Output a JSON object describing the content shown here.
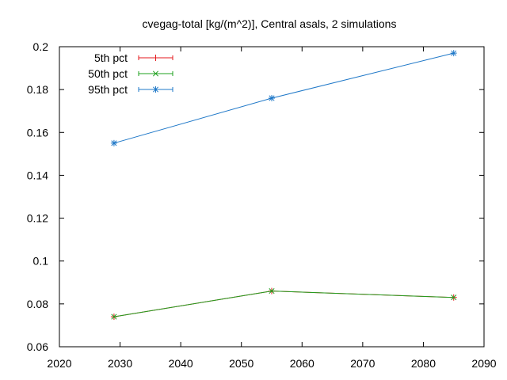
{
  "chart_data": {
    "type": "line",
    "title": "cvegag-total [kg/(m^2)], Central asals, 2 simulations",
    "xlabel": "",
    "ylabel": "",
    "xlim": [
      2020,
      2090
    ],
    "ylim": [
      0.06,
      0.2
    ],
    "xticks": [
      2020,
      2030,
      2040,
      2050,
      2060,
      2070,
      2080,
      2090
    ],
    "yticks": [
      0.06,
      0.08,
      0.1,
      0.12,
      0.14,
      0.16,
      0.18,
      0.2
    ],
    "ytick_labels": [
      "0.06",
      "0.08",
      "0.1",
      "0.12",
      "0.14",
      "0.16",
      "0.18",
      "0.2"
    ],
    "x": [
      2029,
      2055,
      2085
    ],
    "grid": false,
    "legend_position": "top-left",
    "series": [
      {
        "name": "5th pct",
        "color": "#e41a1c",
        "marker": "plus",
        "values": [
          0.074,
          0.086,
          0.083
        ]
      },
      {
        "name": "50th pct",
        "color": "#1fa01f",
        "marker": "cross",
        "values": [
          0.074,
          0.086,
          0.083
        ]
      },
      {
        "name": "95th pct",
        "color": "#1f78c8",
        "marker": "asterisk",
        "values": [
          0.155,
          0.176,
          0.197
        ]
      }
    ]
  }
}
